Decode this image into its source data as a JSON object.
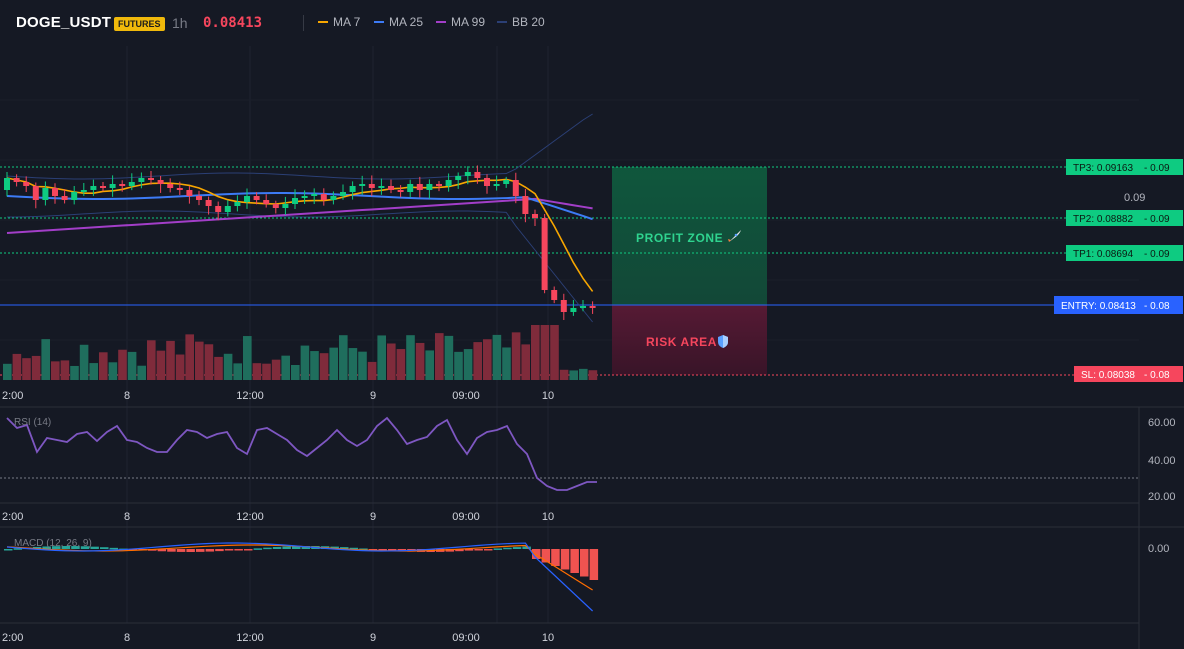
{
  "header": {
    "symbol": "DOGE_USDT",
    "badge": "FUTURES",
    "interval": "1h",
    "last_price": "0.08413",
    "legend": [
      {
        "label": "MA 7",
        "color": "#f7a600"
      },
      {
        "label": "MA 25",
        "color": "#3d7bf6"
      },
      {
        "label": "MA 99",
        "color": "#a23ec8"
      },
      {
        "label": "BB 20",
        "color": "#2b3f75"
      }
    ]
  },
  "colors": {
    "up": "#0ecb81",
    "down": "#f6465d",
    "up_volume": "#1f6e5d",
    "down_volume": "#7f2b3b",
    "profit_zone": "#0f4a35",
    "risk_area": "#4c1630",
    "entry": "#2962ff",
    "rsi": "#7e57c2",
    "macd": "#2962ff",
    "signal": "#ff6d00"
  },
  "time_axis": [
    "2:00",
    "8",
    "12:00",
    "9",
    "09:00",
    "10"
  ],
  "price_axis": {
    "label": "0.09"
  },
  "levels": [
    {
      "label": "TP3: 0.09163",
      "axis": "0.09",
      "kind": "tp"
    },
    {
      "label": "TP2: 0.08882",
      "axis": "0.09",
      "kind": "tp"
    },
    {
      "label": "TP1: 0.08694",
      "axis": "0.09",
      "kind": "tp"
    },
    {
      "label": "ENTRY: 0.08413",
      "axis": "0.08",
      "kind": "entry"
    },
    {
      "label": "SL: 0.08038",
      "axis": "0.08",
      "kind": "sl"
    }
  ],
  "zones": {
    "profit_label": "PROFIT ZONE",
    "profit_icon": "rocket-icon",
    "risk_label": "RISK AREA",
    "risk_icon": "shield-icon"
  },
  "rsi_pane": {
    "title": "RSI (14)",
    "axis": [
      "60.00",
      "40.00",
      "20.00"
    ]
  },
  "macd_pane": {
    "title": "MACD (12, 26, 9)",
    "axis": [
      "0.00"
    ]
  }
}
